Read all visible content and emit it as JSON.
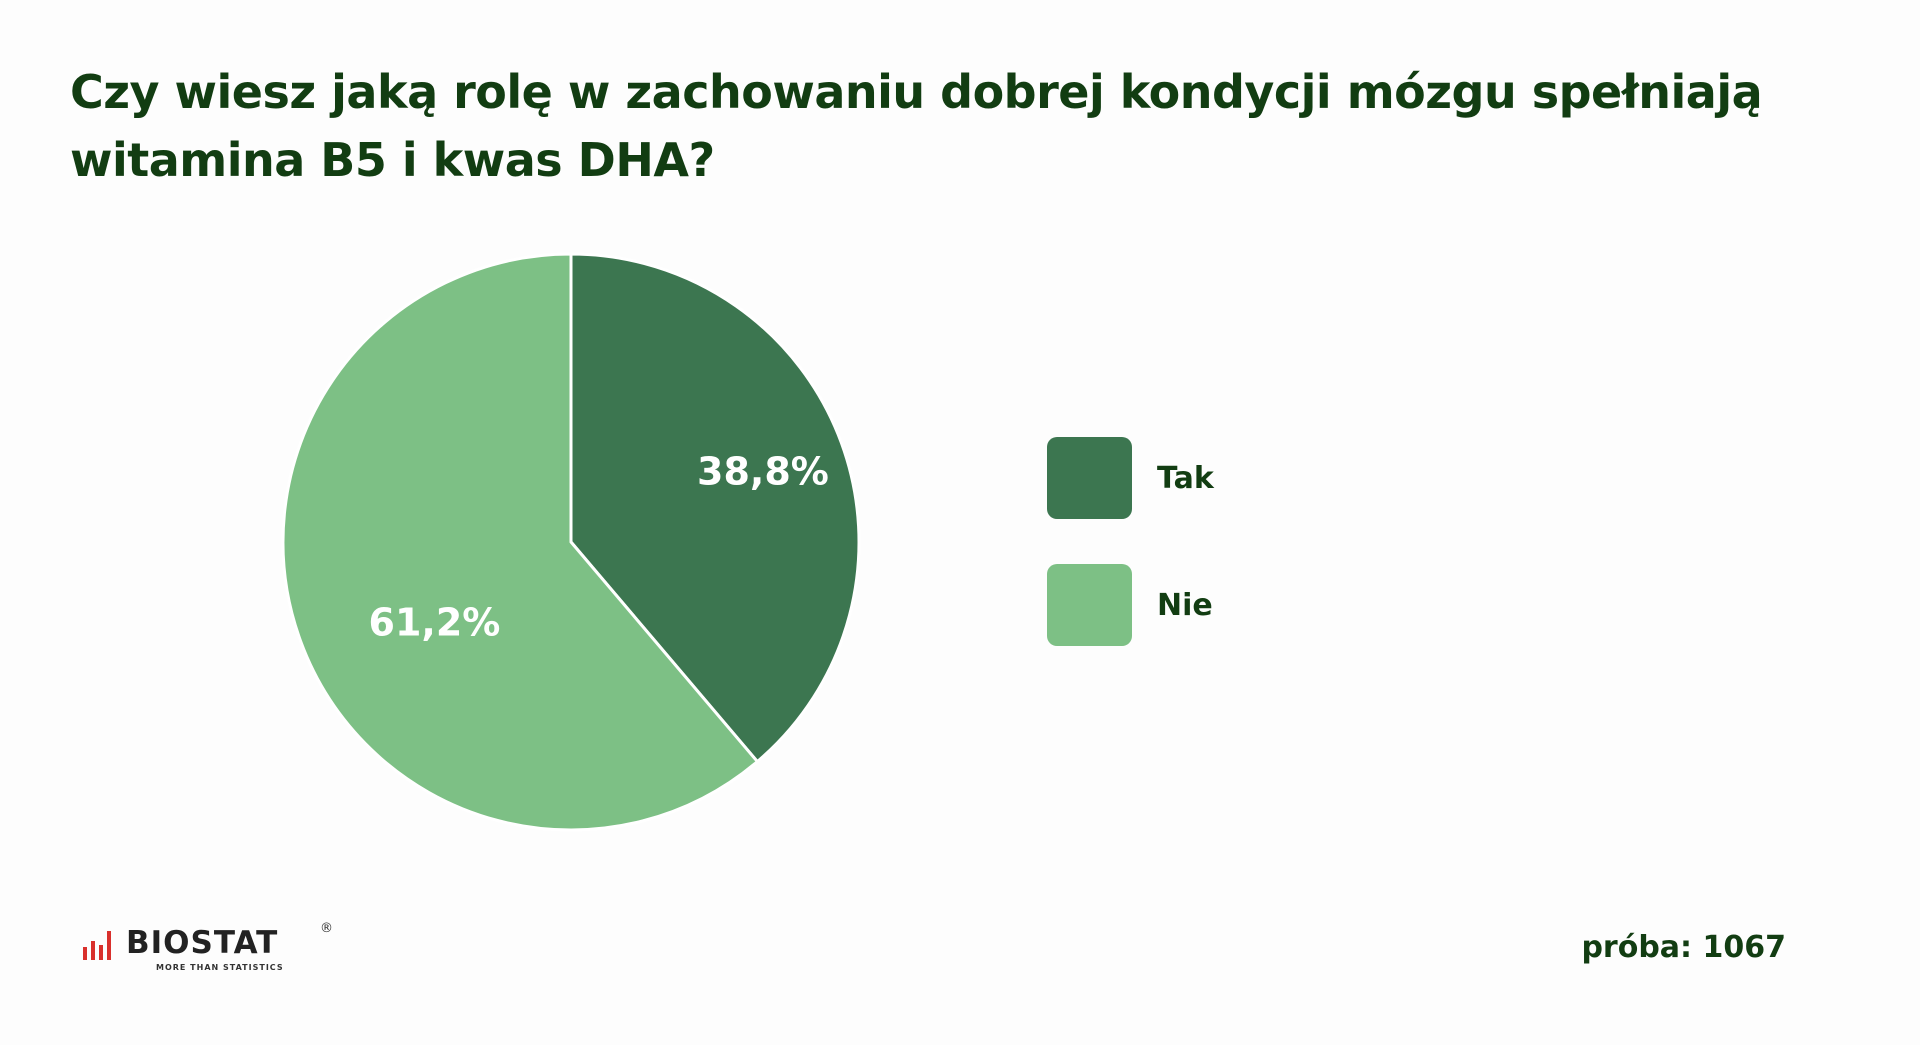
{
  "header": {
    "title_line1": "Czy wiesz jaką rolę w zachowaniu dobrej kondycji mózgu spełniają",
    "title_line2": "witamina B5 i kwas DHA?"
  },
  "chart_data": {
    "type": "pie",
    "title": "Czy wiesz jaką rolę w zachowaniu dobrej kondycji mózgu spełniają witamina B5 i kwas DHA?",
    "categories": [
      "Tak",
      "Nie"
    ],
    "values": [
      38.8,
      61.2
    ],
    "value_labels": [
      "38,8%",
      "61,2%"
    ],
    "colors": [
      "#3c7650",
      "#7dc085"
    ],
    "legend_position": "right"
  },
  "legend": [
    {
      "label": "Tak",
      "color": "#3c7650"
    },
    {
      "label": "Nie",
      "color": "#7dc085"
    }
  ],
  "footer": {
    "logo_text": "BIOSTAT",
    "logo_reg": "®",
    "logo_tagline": "MORE THAN STATISTICS",
    "sample_label": "próba: 1067"
  },
  "colors": {
    "title": "#123d12",
    "logo_accent": "#d9302c"
  }
}
